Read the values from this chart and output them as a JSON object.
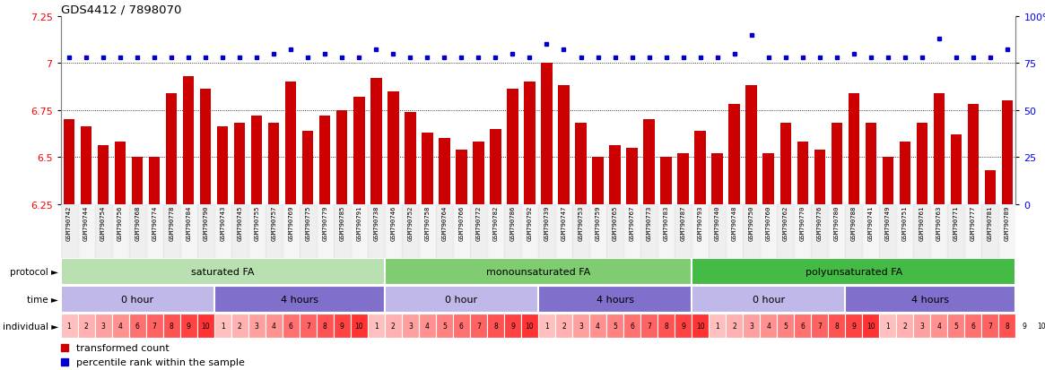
{
  "title": "GDS4412 / 7898070",
  "sample_ids": [
    "GSM790742",
    "GSM790744",
    "GSM790754",
    "GSM790756",
    "GSM790768",
    "GSM790774",
    "GSM790778",
    "GSM790784",
    "GSM790790",
    "GSM790743",
    "GSM790745",
    "GSM790755",
    "GSM790757",
    "GSM790769",
    "GSM790775",
    "GSM790779",
    "GSM790785",
    "GSM790791",
    "GSM790738",
    "GSM790746",
    "GSM790752",
    "GSM790758",
    "GSM790764",
    "GSM790766",
    "GSM790772",
    "GSM790782",
    "GSM790786",
    "GSM790792",
    "GSM790739",
    "GSM790747",
    "GSM790753",
    "GSM790759",
    "GSM790765",
    "GSM790767",
    "GSM790773",
    "GSM790783",
    "GSM790787",
    "GSM790793",
    "GSM790740",
    "GSM790748",
    "GSM790750",
    "GSM790760",
    "GSM790762",
    "GSM790770",
    "GSM790776",
    "GSM790780",
    "GSM790788",
    "GSM790741",
    "GSM790749",
    "GSM790751",
    "GSM790761",
    "GSM790763",
    "GSM790771",
    "GSM790777",
    "GSM790781",
    "GSM790789"
  ],
  "bar_values": [
    6.7,
    6.66,
    6.56,
    6.58,
    6.5,
    6.5,
    6.84,
    6.93,
    6.86,
    6.66,
    6.68,
    6.72,
    6.68,
    6.9,
    6.64,
    6.72,
    6.75,
    6.82,
    6.92,
    6.85,
    6.74,
    6.63,
    6.6,
    6.54,
    6.58,
    6.65,
    6.86,
    6.9,
    7.0,
    6.88,
    6.68,
    6.5,
    6.56,
    6.55,
    6.7,
    6.5,
    6.52,
    6.64,
    6.52,
    6.78,
    6.88,
    6.52,
    6.68,
    6.58,
    6.54,
    6.68,
    6.84,
    6.68,
    6.5,
    6.58,
    6.68,
    6.84,
    6.62,
    6.78,
    6.43,
    6.8
  ],
  "dot_values": [
    78,
    78,
    78,
    78,
    78,
    78,
    78,
    78,
    78,
    78,
    78,
    78,
    80,
    82,
    78,
    80,
    78,
    78,
    82,
    80,
    78,
    78,
    78,
    78,
    78,
    78,
    80,
    78,
    85,
    82,
    78,
    78,
    78,
    78,
    78,
    78,
    78,
    78,
    78,
    80,
    90,
    78,
    78,
    78,
    78,
    78,
    80,
    78,
    78,
    78,
    78,
    88,
    78,
    78,
    78,
    82
  ],
  "bar_color": "#cc0000",
  "dot_color": "#0000cc",
  "ylim_left": [
    6.25,
    7.25
  ],
  "ylim_right": [
    0,
    100
  ],
  "yticks_left": [
    6.25,
    6.5,
    6.75,
    7.0,
    7.25
  ],
  "ytick_labels_left": [
    "6.25",
    "6.5",
    "6.75",
    "7",
    "7.25"
  ],
  "yticks_right": [
    0,
    25,
    50,
    75,
    100
  ],
  "ytick_labels_right": [
    "0",
    "25",
    "50",
    "75",
    "100%"
  ],
  "hlines": [
    6.5,
    6.75,
    7.0
  ],
  "protocol_groups": [
    {
      "label": "saturated FA",
      "start": 0,
      "end": 19,
      "color": "#b8e0b0"
    },
    {
      "label": "monounsaturated FA",
      "start": 19,
      "end": 37,
      "color": "#80cc70"
    },
    {
      "label": "polyunsaturated FA",
      "start": 37,
      "end": 56,
      "color": "#44bb44"
    }
  ],
  "time_groups": [
    {
      "label": "0 hour",
      "start": 0,
      "end": 9,
      "color": "#c0b8e8"
    },
    {
      "label": "4 hours",
      "start": 9,
      "end": 19,
      "color": "#8070cc"
    },
    {
      "label": "0 hour",
      "start": 19,
      "end": 28,
      "color": "#c0b8e8"
    },
    {
      "label": "4 hours",
      "start": 28,
      "end": 37,
      "color": "#8070cc"
    },
    {
      "label": "0 hour",
      "start": 37,
      "end": 46,
      "color": "#c0b8e8"
    },
    {
      "label": "4 hours",
      "start": 46,
      "end": 56,
      "color": "#8070cc"
    }
  ],
  "grp_individuals": [
    [
      1,
      2,
      3,
      4,
      6,
      7,
      8,
      9,
      10
    ],
    [
      1,
      2,
      3,
      4,
      6,
      7,
      8,
      9,
      10
    ],
    [
      1,
      2,
      3,
      4,
      5,
      6,
      7,
      8,
      9,
      10
    ],
    [
      1,
      2,
      3,
      4,
      5,
      6,
      7,
      8,
      9,
      10
    ],
    [
      1,
      2,
      3,
      4,
      5,
      6,
      7,
      8,
      9,
      10
    ],
    [
      1,
      2,
      3,
      4,
      5,
      6,
      7,
      8,
      9,
      10
    ]
  ],
  "legend_bar_label": "transformed count",
  "legend_dot_label": "percentile rank within the sample",
  "row_labels": [
    "protocol",
    "time",
    "individual"
  ]
}
